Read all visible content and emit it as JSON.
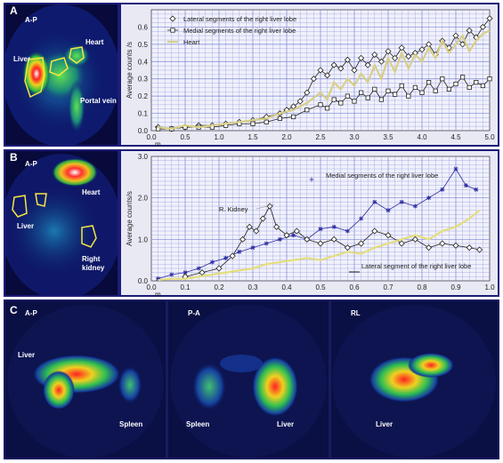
{
  "panelA": {
    "letter": "A",
    "view": "A-P",
    "labels": {
      "heart": "Heart",
      "liver": "Liver",
      "portal": "Portal vein"
    },
    "chart_data": {
      "type": "line",
      "ylabel": "Average counts /s",
      "xunit": "m.",
      "xlim": [
        0,
        5
      ],
      "ylim": [
        0,
        0.7
      ],
      "xticks": [
        "0.0",
        "0.5",
        "1.0",
        "1.5",
        "2.0",
        "2.5",
        "3.0",
        "3.5",
        "4.0",
        "4.5",
        "5.0"
      ],
      "yticks": [
        "0.0",
        "0.1",
        "0.2",
        "0.3",
        "0.4",
        "0.5",
        "0.6"
      ],
      "series": [
        {
          "name": "Lateral segments of the right liver lobe",
          "marker": "diamond",
          "color": "#222222",
          "x": [
            0.1,
            0.3,
            0.5,
            0.7,
            0.9,
            1.1,
            1.3,
            1.5,
            1.7,
            1.9,
            2.0,
            2.1,
            2.2,
            2.3,
            2.4,
            2.5,
            2.6,
            2.7,
            2.8,
            2.9,
            3.0,
            3.1,
            3.2,
            3.3,
            3.4,
            3.5,
            3.6,
            3.7,
            3.8,
            3.9,
            4.0,
            4.1,
            4.2,
            4.3,
            4.4,
            4.5,
            4.6,
            4.7,
            4.8,
            4.9,
            5.0
          ],
          "y": [
            0.02,
            0.01,
            0.02,
            0.03,
            0.03,
            0.04,
            0.05,
            0.06,
            0.08,
            0.1,
            0.12,
            0.14,
            0.17,
            0.22,
            0.3,
            0.35,
            0.32,
            0.38,
            0.36,
            0.41,
            0.35,
            0.42,
            0.38,
            0.44,
            0.4,
            0.46,
            0.42,
            0.48,
            0.43,
            0.45,
            0.47,
            0.5,
            0.44,
            0.52,
            0.48,
            0.55,
            0.5,
            0.58,
            0.54,
            0.6,
            0.65
          ]
        },
        {
          "name": "Medial segments of the right liver lobe",
          "marker": "square",
          "color": "#222222",
          "x": [
            0.1,
            0.3,
            0.5,
            0.7,
            0.9,
            1.1,
            1.3,
            1.5,
            1.7,
            1.9,
            2.1,
            2.3,
            2.5,
            2.6,
            2.7,
            2.8,
            2.9,
            3.0,
            3.1,
            3.2,
            3.3,
            3.4,
            3.5,
            3.6,
            3.7,
            3.8,
            3.9,
            4.0,
            4.1,
            4.2,
            4.3,
            4.4,
            4.5,
            4.6,
            4.7,
            4.8,
            4.9,
            5.0
          ],
          "y": [
            0.01,
            0.01,
            0.02,
            0.02,
            0.02,
            0.03,
            0.04,
            0.04,
            0.05,
            0.07,
            0.08,
            0.12,
            0.15,
            0.13,
            0.18,
            0.16,
            0.2,
            0.17,
            0.22,
            0.19,
            0.24,
            0.18,
            0.23,
            0.21,
            0.26,
            0.2,
            0.25,
            0.22,
            0.28,
            0.23,
            0.3,
            0.24,
            0.27,
            0.31,
            0.25,
            0.28,
            0.26,
            0.3
          ]
        },
        {
          "name": "Heart",
          "marker": "none",
          "color": "#d8cf86",
          "x": [
            0.1,
            0.3,
            0.5,
            0.7,
            0.9,
            1.1,
            1.3,
            1.5,
            1.7,
            1.9,
            2.1,
            2.3,
            2.5,
            2.6,
            2.7,
            2.8,
            2.9,
            3.0,
            3.1,
            3.2,
            3.3,
            3.4,
            3.5,
            3.6,
            3.7,
            3.8,
            3.9,
            4.0,
            4.1,
            4.2,
            4.3,
            4.4,
            4.5,
            4.6,
            4.7,
            4.8,
            4.9,
            5.0
          ],
          "y": [
            0.02,
            0.01,
            0.03,
            0.02,
            0.03,
            0.04,
            0.05,
            0.06,
            0.07,
            0.1,
            0.12,
            0.16,
            0.22,
            0.18,
            0.28,
            0.24,
            0.3,
            0.26,
            0.33,
            0.28,
            0.38,
            0.3,
            0.42,
            0.34,
            0.45,
            0.36,
            0.44,
            0.4,
            0.48,
            0.42,
            0.52,
            0.45,
            0.5,
            0.55,
            0.46,
            0.52,
            0.56,
            0.58
          ]
        }
      ]
    }
  },
  "panelB": {
    "letter": "B",
    "view": "A-P",
    "labels": {
      "heart": "Heart",
      "liver": "Liver",
      "kidney": "Right kidney"
    },
    "chart_data": {
      "type": "line",
      "ylabel": "Average counts/s",
      "xunit": "m.",
      "xlim": [
        0,
        1.0
      ],
      "ylim": [
        0,
        3.0
      ],
      "xticks": [
        "0.0",
        "0.1",
        "0.2",
        "0.3",
        "0.4",
        "0.5",
        "0.6",
        "0.7",
        "0.8",
        "0.9",
        "1.0"
      ],
      "yticks": [
        "0.0",
        "1.0",
        "2.0",
        "3.0"
      ],
      "annotations": {
        "kidney": "R. Kidney",
        "medial": "Medial segments of the right liver lobe",
        "lateral": "Lateral segment of the right liver lobe"
      },
      "series": [
        {
          "name": "Medial segments of the right liver lobe",
          "marker": "star",
          "color": "#2a2aa0",
          "x": [
            0.02,
            0.06,
            0.1,
            0.14,
            0.18,
            0.22,
            0.26,
            0.3,
            0.34,
            0.38,
            0.42,
            0.46,
            0.5,
            0.54,
            0.58,
            0.62,
            0.66,
            0.7,
            0.74,
            0.78,
            0.82,
            0.86,
            0.9,
            0.93,
            0.96
          ],
          "y": [
            0.05,
            0.15,
            0.2,
            0.3,
            0.45,
            0.55,
            0.7,
            0.8,
            0.9,
            1.0,
            1.1,
            1.0,
            1.25,
            1.3,
            1.2,
            1.5,
            1.9,
            1.7,
            1.9,
            1.8,
            2.0,
            2.2,
            2.7,
            2.3,
            2.2
          ]
        },
        {
          "name": "R. Kidney",
          "marker": "diamond",
          "color": "#222222",
          "x": [
            0.1,
            0.15,
            0.2,
            0.24,
            0.27,
            0.29,
            0.31,
            0.33,
            0.35,
            0.37,
            0.4,
            0.43,
            0.46,
            0.5,
            0.54,
            0.58,
            0.62,
            0.66,
            0.7,
            0.74,
            0.78,
            0.82,
            0.86,
            0.9,
            0.94,
            0.97
          ],
          "y": [
            0.1,
            0.2,
            0.3,
            0.6,
            1.0,
            1.3,
            1.2,
            1.5,
            1.8,
            1.3,
            1.1,
            1.2,
            1.0,
            0.9,
            1.0,
            0.8,
            0.9,
            1.2,
            1.1,
            0.9,
            1.0,
            0.8,
            0.9,
            0.85,
            0.8,
            0.75
          ]
        },
        {
          "name": "Lateral segment of the right liver lobe",
          "marker": "none",
          "color": "#e4de7c",
          "x": [
            0.02,
            0.06,
            0.1,
            0.14,
            0.18,
            0.22,
            0.26,
            0.3,
            0.34,
            0.38,
            0.42,
            0.46,
            0.5,
            0.54,
            0.58,
            0.62,
            0.66,
            0.7,
            0.74,
            0.78,
            0.82,
            0.86,
            0.9,
            0.94,
            0.97
          ],
          "y": [
            0.02,
            0.05,
            0.05,
            0.1,
            0.15,
            0.2,
            0.25,
            0.3,
            0.4,
            0.45,
            0.5,
            0.55,
            0.5,
            0.6,
            0.7,
            0.65,
            0.8,
            0.9,
            1.0,
            1.1,
            1.0,
            1.2,
            1.3,
            1.5,
            1.7
          ]
        }
      ]
    }
  },
  "panelC": {
    "letter": "C",
    "views": [
      {
        "view": "A-P",
        "labels": [
          "Liver",
          "Spleen"
        ]
      },
      {
        "view": "P-A",
        "labels": [
          "Spleen",
          "Liver"
        ]
      },
      {
        "view": "RL",
        "labels": [
          "Liver"
        ]
      }
    ]
  },
  "colors": {
    "grid": "#7a86d6",
    "plot_bg": "#f1f1fb",
    "frame": "#1c1c7a",
    "scan_bg": "#070a3a"
  }
}
